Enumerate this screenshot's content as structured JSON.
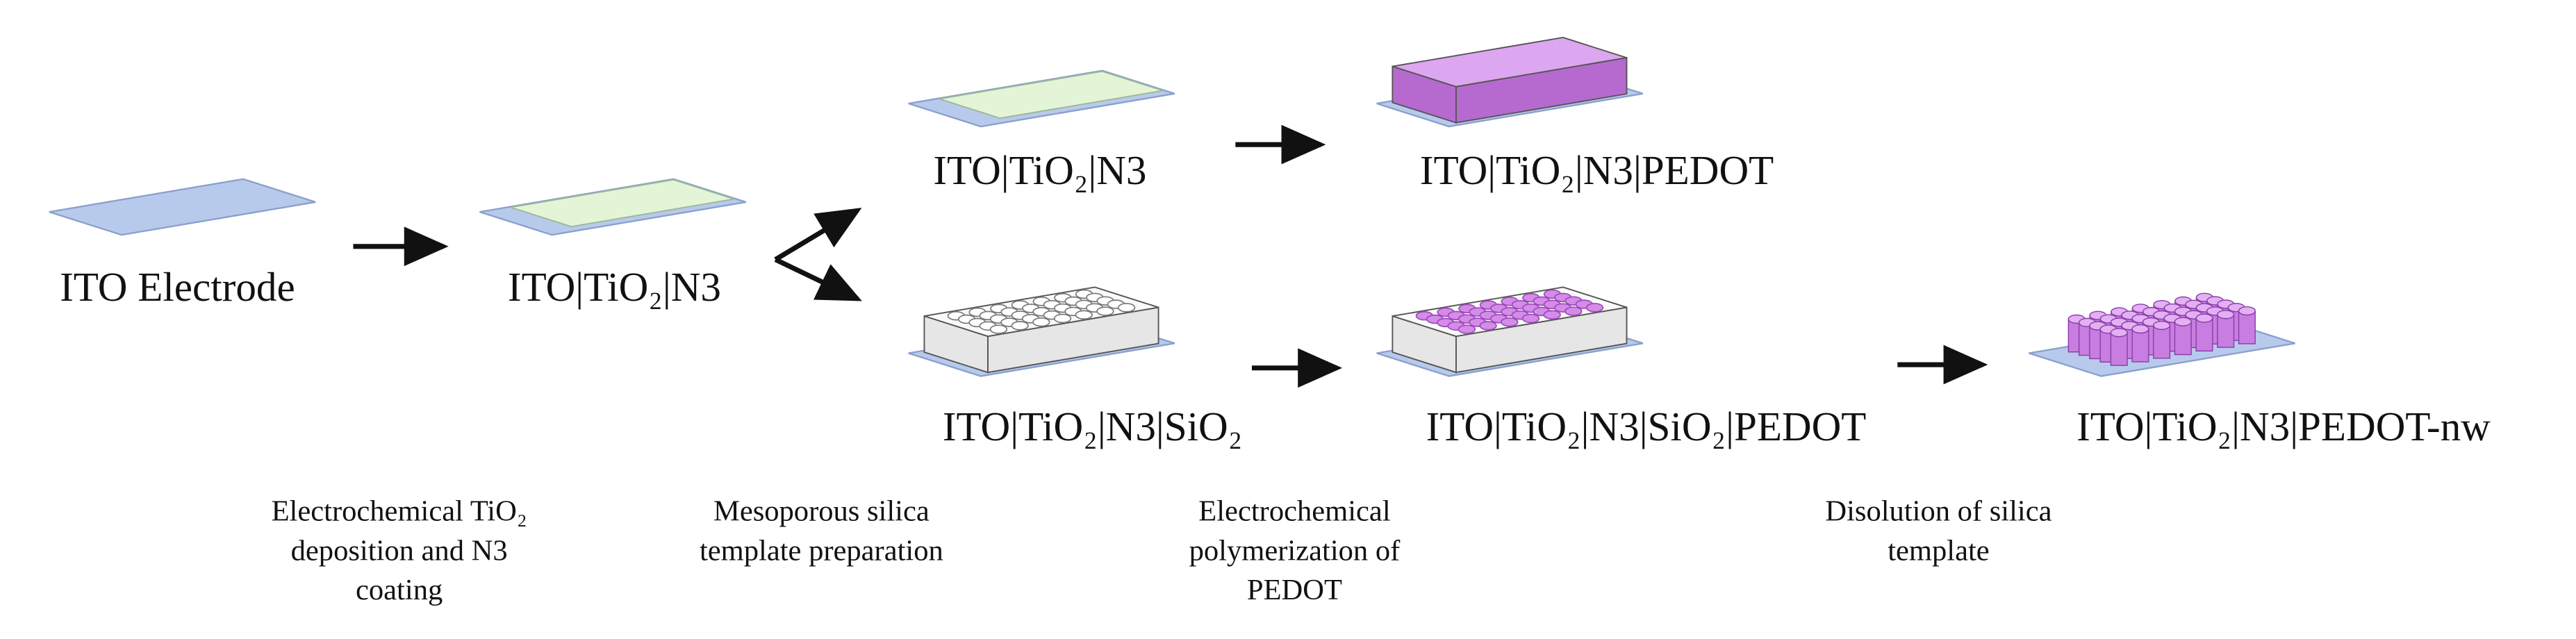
{
  "nodes": [
    {
      "label": "ITO Electrode"
    },
    {
      "label": "ITO|TiO₂|N3"
    },
    {
      "label": "ITO|TiO₂|N3"
    },
    {
      "label": "ITO|TiO₂|N3|PEDOT"
    },
    {
      "label": "ITO|TiO₂|N3|SiO₂"
    },
    {
      "label": "ITO|TiO₂|N3|SiO₂|PEDOT"
    },
    {
      "label": "ITO|TiO₂|N3|PEDOT-nw"
    }
  ],
  "steps": [
    {
      "lines": [
        "Electrochemical TiO₂",
        "deposition and N3",
        "coating"
      ]
    },
    {
      "lines": [
        "Mesoporous silica",
        "template preparation"
      ]
    },
    {
      "lines": [
        "Electrochemical",
        "polymerization of",
        "PEDOT"
      ]
    },
    {
      "lines": [
        "Disolution of silica",
        "template"
      ]
    }
  ]
}
